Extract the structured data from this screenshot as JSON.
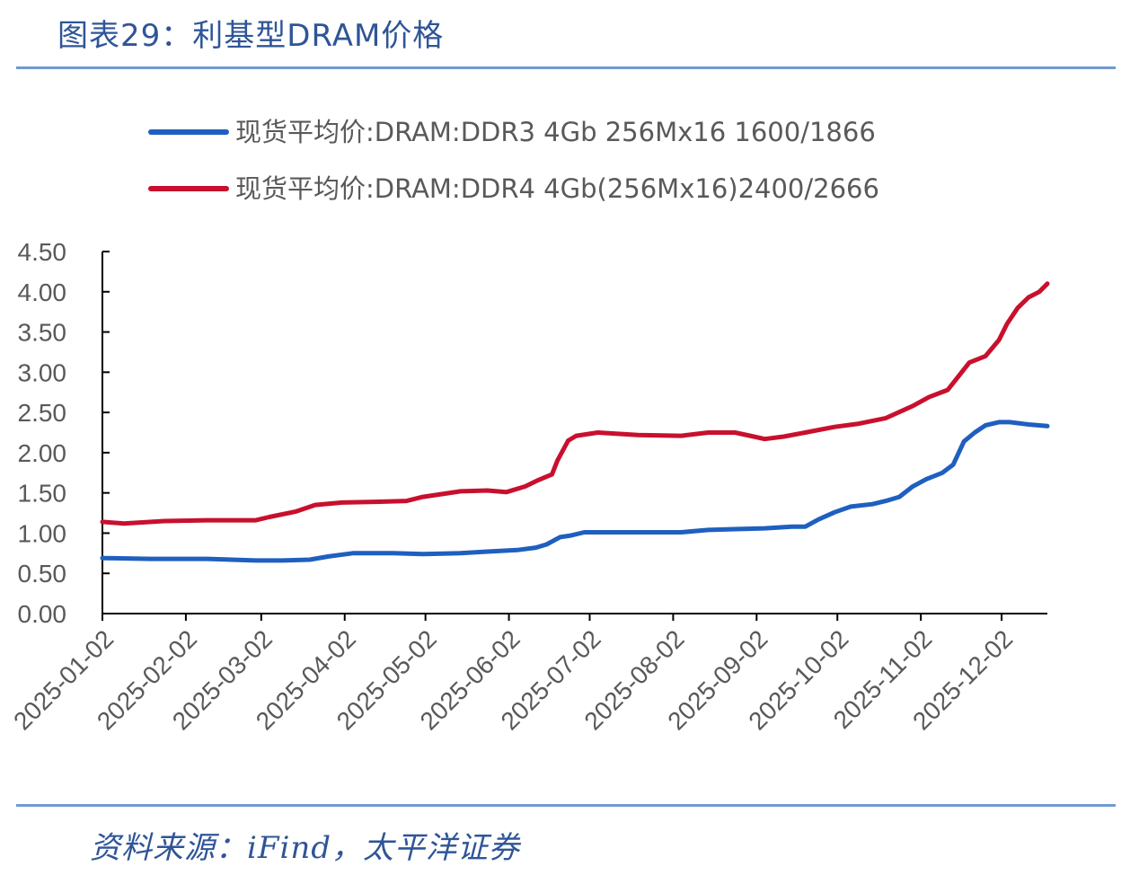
{
  "header": {
    "title": "图表29：利基型DRAM价格"
  },
  "footer": {
    "source": "资料来源：iFind，太平洋证券"
  },
  "chart_data": {
    "type": "line",
    "title": "",
    "xlabel": "",
    "ylabel": "",
    "ylim": [
      0,
      4.5
    ],
    "y_ticks": [
      "0.00",
      "0.50",
      "1.00",
      "1.50",
      "2.00",
      "2.50",
      "3.00",
      "3.50",
      "4.00",
      "4.50"
    ],
    "x_ticks": [
      "2025-01-02",
      "2025-02-02",
      "2025-03-02",
      "2025-04-02",
      "2025-05-02",
      "2025-06-02",
      "2025-07-02",
      "2025-08-02",
      "2025-09-02",
      "2025-10-02",
      "2025-11-02",
      "2025-12-02"
    ],
    "x_range": [
      "2025-01-02",
      "2025-12-19"
    ],
    "legend_position": "top",
    "grid": false,
    "series": [
      {
        "name": "现货平均价:DRAM:DDR3 4Gb 256Mx16 1600/1866",
        "color": "#1f5fbf",
        "points": [
          [
            "2025-01-02",
            0.69
          ],
          [
            "2025-01-20",
            0.68
          ],
          [
            "2025-02-10",
            0.68
          ],
          [
            "2025-02-28",
            0.66
          ],
          [
            "2025-03-10",
            0.66
          ],
          [
            "2025-03-20",
            0.67
          ],
          [
            "2025-03-27",
            0.71
          ],
          [
            "2025-04-05",
            0.75
          ],
          [
            "2025-04-20",
            0.75
          ],
          [
            "2025-05-01",
            0.74
          ],
          [
            "2025-05-15",
            0.75
          ],
          [
            "2025-05-25",
            0.77
          ],
          [
            "2025-06-05",
            0.79
          ],
          [
            "2025-06-12",
            0.82
          ],
          [
            "2025-06-16",
            0.86
          ],
          [
            "2025-06-21",
            0.95
          ],
          [
            "2025-06-25",
            0.97
          ],
          [
            "2025-06-30",
            1.01
          ],
          [
            "2025-07-10",
            1.01
          ],
          [
            "2025-07-25",
            1.01
          ],
          [
            "2025-08-05",
            1.01
          ],
          [
            "2025-08-15",
            1.04
          ],
          [
            "2025-08-25",
            1.05
          ],
          [
            "2025-09-05",
            1.06
          ],
          [
            "2025-09-15",
            1.08
          ],
          [
            "2025-09-20",
            1.08
          ],
          [
            "2025-09-25",
            1.17
          ],
          [
            "2025-10-01",
            1.26
          ],
          [
            "2025-10-07",
            1.33
          ],
          [
            "2025-10-15",
            1.36
          ],
          [
            "2025-10-20",
            1.4
          ],
          [
            "2025-10-25",
            1.45
          ],
          [
            "2025-10-30",
            1.58
          ],
          [
            "2025-11-04",
            1.67
          ],
          [
            "2025-11-10",
            1.75
          ],
          [
            "2025-11-14",
            1.85
          ],
          [
            "2025-11-18",
            2.14
          ],
          [
            "2025-11-22",
            2.25
          ],
          [
            "2025-11-26",
            2.34
          ],
          [
            "2025-12-01",
            2.38
          ],
          [
            "2025-12-05",
            2.38
          ],
          [
            "2025-12-12",
            2.35
          ],
          [
            "2025-12-19",
            2.33
          ]
        ]
      },
      {
        "name": "现货平均价:DRAM:DDR4 4Gb(256Mx16)2400/2666",
        "color": "#c8102e",
        "points": [
          [
            "2025-01-02",
            1.14
          ],
          [
            "2025-01-10",
            1.12
          ],
          [
            "2025-01-25",
            1.15
          ],
          [
            "2025-02-10",
            1.16
          ],
          [
            "2025-02-28",
            1.16
          ],
          [
            "2025-03-05",
            1.2
          ],
          [
            "2025-03-15",
            1.27
          ],
          [
            "2025-03-22",
            1.35
          ],
          [
            "2025-04-01",
            1.38
          ],
          [
            "2025-04-15",
            1.39
          ],
          [
            "2025-04-25",
            1.4
          ],
          [
            "2025-05-01",
            1.45
          ],
          [
            "2025-05-15",
            1.52
          ],
          [
            "2025-05-25",
            1.53
          ],
          [
            "2025-06-01",
            1.51
          ],
          [
            "2025-06-08",
            1.58
          ],
          [
            "2025-06-13",
            1.66
          ],
          [
            "2025-06-18",
            1.73
          ],
          [
            "2025-06-20",
            1.9
          ],
          [
            "2025-06-24",
            2.15
          ],
          [
            "2025-06-27",
            2.21
          ],
          [
            "2025-07-05",
            2.25
          ],
          [
            "2025-07-20",
            2.22
          ],
          [
            "2025-08-05",
            2.21
          ],
          [
            "2025-08-15",
            2.25
          ],
          [
            "2025-08-25",
            2.25
          ],
          [
            "2025-09-01",
            2.2
          ],
          [
            "2025-09-05",
            2.17
          ],
          [
            "2025-09-12",
            2.2
          ],
          [
            "2025-09-20",
            2.25
          ],
          [
            "2025-10-01",
            2.32
          ],
          [
            "2025-10-10",
            2.36
          ],
          [
            "2025-10-20",
            2.43
          ],
          [
            "2025-10-30",
            2.58
          ],
          [
            "2025-11-05",
            2.69
          ],
          [
            "2025-11-12",
            2.78
          ],
          [
            "2025-11-16",
            2.95
          ],
          [
            "2025-11-20",
            3.12
          ],
          [
            "2025-11-26",
            3.2
          ],
          [
            "2025-12-01",
            3.4
          ],
          [
            "2025-12-04",
            3.6
          ],
          [
            "2025-12-08",
            3.8
          ],
          [
            "2025-12-12",
            3.93
          ],
          [
            "2025-12-16",
            4.0
          ],
          [
            "2025-12-19",
            4.1
          ]
        ]
      }
    ]
  }
}
